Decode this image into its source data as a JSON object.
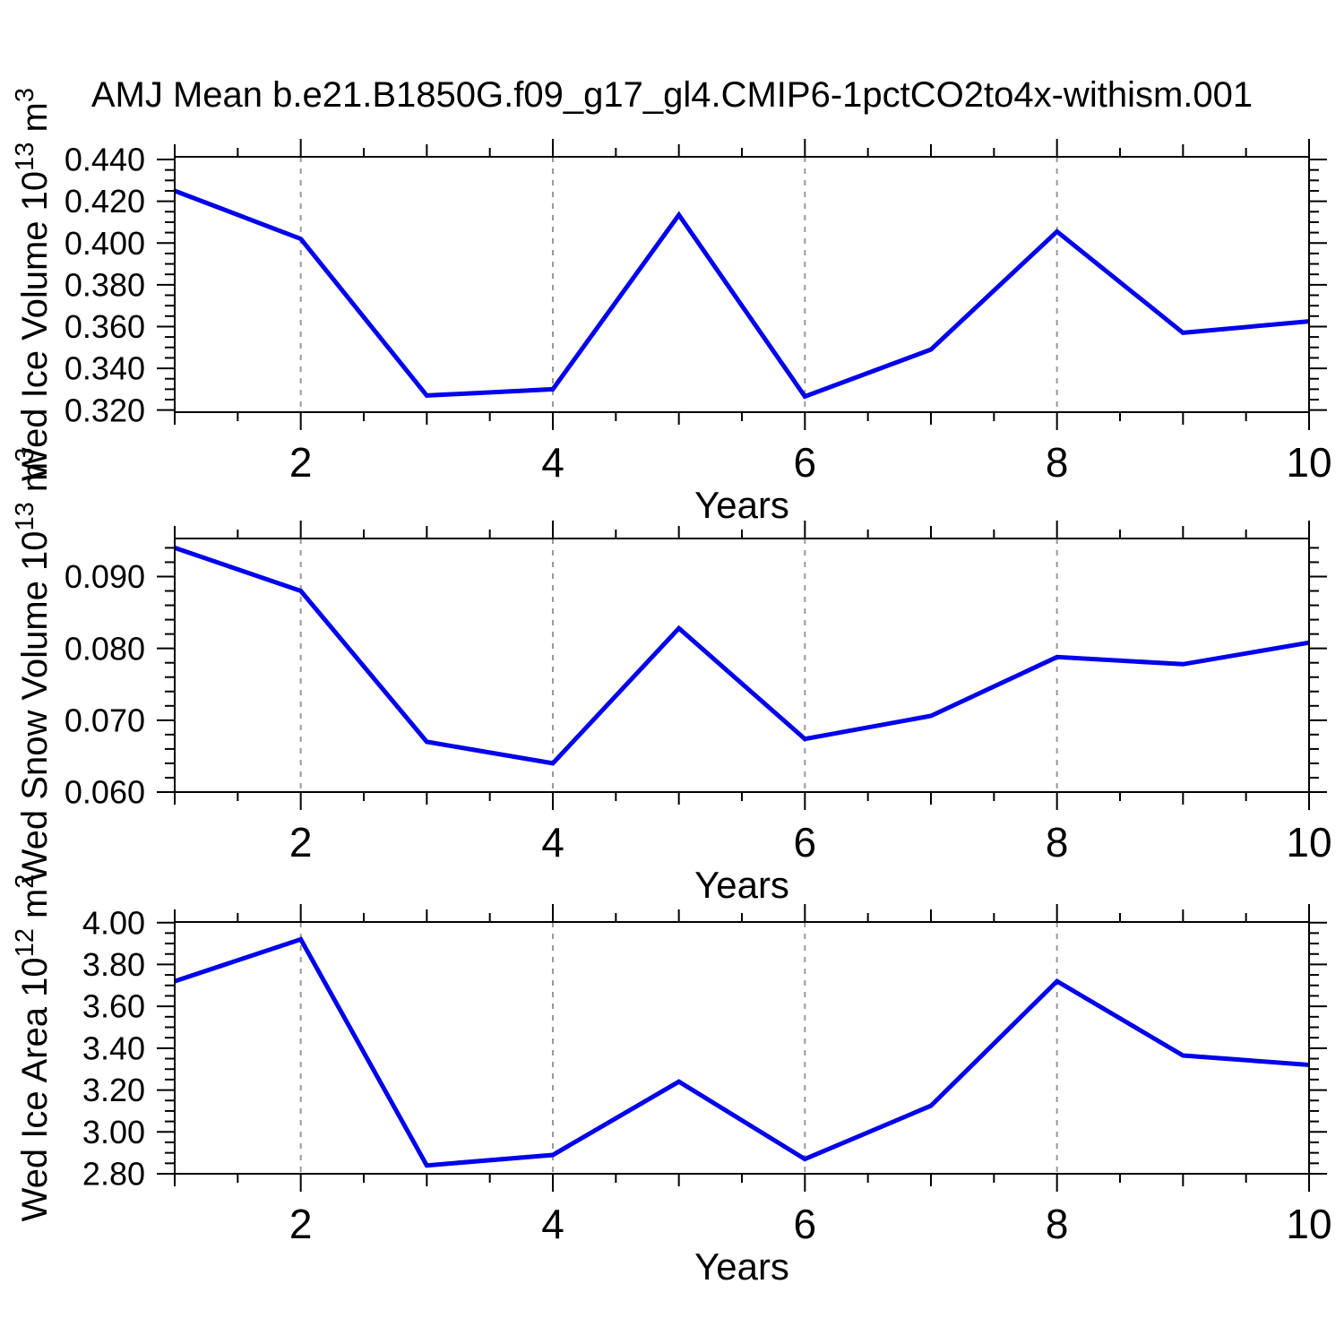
{
  "title": "AMJ Mean b.e21.B1850G.f09_g17_gl4.CMIP6-1pctCO2to4x-withism.001",
  "colors": {
    "line": "#0101EC",
    "grid": "#999999",
    "axis": "#000000",
    "text": "#000000",
    "background": "#FFFFFF"
  },
  "chart_data": [
    {
      "type": "line",
      "ylabel": "Wed Ice Volume 10^13 m^3",
      "xlabel": "Years",
      "x": [
        1,
        2,
        3,
        4,
        5,
        6,
        7,
        8,
        9,
        10
      ],
      "values": [
        0.425,
        0.402,
        0.327,
        0.33,
        0.4135,
        0.3265,
        0.349,
        0.4055,
        0.357,
        0.3625
      ],
      "xlim": [
        1,
        10
      ],
      "ylim": [
        0.319,
        0.4413
      ],
      "yticks": [
        0.32,
        0.34,
        0.36,
        0.38,
        0.4,
        0.42,
        0.44
      ],
      "ytick_labels": [
        "0.320",
        "0.340",
        "0.360",
        "0.380",
        "0.400",
        "0.420",
        "0.440"
      ],
      "y_minor_step": 0.005,
      "xtick_values": [
        2,
        4,
        6,
        8,
        10
      ],
      "xtick_labels": [
        "2",
        "4",
        "6",
        "8",
        "10"
      ],
      "x_minor_step": 0.5,
      "grid_x": [
        2,
        4,
        6,
        8
      ],
      "grid_style": "vertical-dashed",
      "legend": "none"
    },
    {
      "type": "line",
      "ylabel": "Wed Snow Volume 10^13 m^3",
      "xlabel": "Years",
      "x": [
        1,
        2,
        3,
        4,
        5,
        6,
        7,
        8,
        9,
        10
      ],
      "values": [
        0.094,
        0.088,
        0.067,
        0.064,
        0.0828,
        0.0674,
        0.0706,
        0.0788,
        0.0778,
        0.0808
      ],
      "xlim": [
        1,
        10
      ],
      "ylim": [
        0.06,
        0.0953
      ],
      "yticks": [
        0.06,
        0.07,
        0.08,
        0.09
      ],
      "ytick_labels": [
        "0.060",
        "0.070",
        "0.080",
        "0.090"
      ],
      "y_minor_step": 0.002,
      "xtick_values": [
        2,
        4,
        6,
        8,
        10
      ],
      "xtick_labels": [
        "2",
        "4",
        "6",
        "8",
        "10"
      ],
      "x_minor_step": 0.5,
      "grid_x": [
        2,
        4,
        6,
        8
      ],
      "grid_style": "vertical-dashed",
      "legend": "none"
    },
    {
      "type": "line",
      "ylabel": "Wed Ice Area 10^12 m^2",
      "xlabel": "Years",
      "x": [
        1,
        2,
        3,
        4,
        5,
        6,
        7,
        8,
        9,
        10
      ],
      "values": [
        3.72,
        3.92,
        2.84,
        2.89,
        3.24,
        2.87,
        3.125,
        3.72,
        3.365,
        3.32
      ],
      "xlim": [
        1,
        10
      ],
      "ylim": [
        2.8,
        4.003
      ],
      "yticks": [
        2.8,
        3.0,
        3.2,
        3.4,
        3.6,
        3.8,
        4.0
      ],
      "ytick_labels": [
        "2.80",
        "3.00",
        "3.20",
        "3.40",
        "3.60",
        "3.80",
        "4.00"
      ],
      "y_minor_step": 0.05,
      "xtick_values": [
        2,
        4,
        6,
        8,
        10
      ],
      "xtick_labels": [
        "2",
        "4",
        "6",
        "8",
        "10"
      ],
      "x_minor_step": 0.5,
      "grid_x": [
        2,
        4,
        6,
        8
      ],
      "grid_style": "vertical-dashed",
      "legend": "none"
    }
  ]
}
